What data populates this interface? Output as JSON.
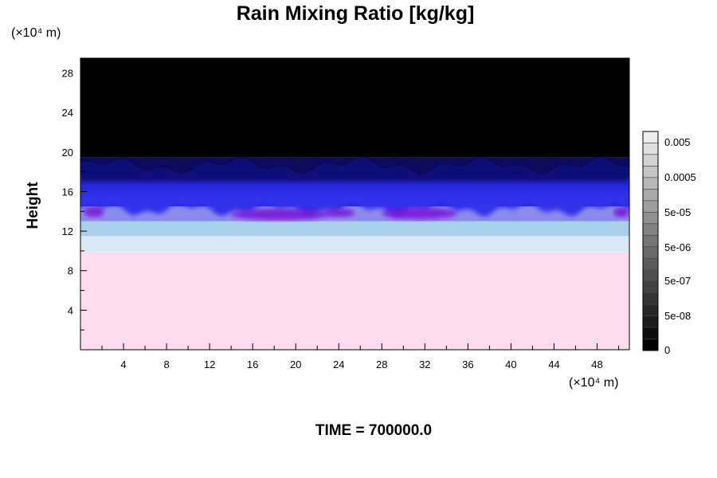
{
  "chart_data": {
    "type": "heatmap",
    "title": "Rain Mixing Ratio [kg/kg]",
    "ylabel": "Height",
    "x_unit": "(×10⁴ m)",
    "y_unit": "(×10⁴ m)",
    "x_ticks": [
      4,
      8,
      12,
      16,
      20,
      24,
      28,
      32,
      36,
      40,
      44,
      48
    ],
    "y_ticks": [
      4,
      8,
      12,
      16,
      20,
      24,
      28
    ],
    "xlim": [
      0,
      51
    ],
    "ylim": [
      0,
      29.5
    ],
    "colorbar": {
      "labels": [
        "0.005",
        "0.0005",
        "5e-05",
        "5e-06",
        "5e-07",
        "5e-08",
        "0"
      ]
    },
    "fields": [
      {
        "name": "surface",
        "y_range": [
          0,
          10
        ],
        "color": "#fcdcee"
      },
      {
        "name": "lower-transition",
        "y_range": [
          10,
          11.5
        ],
        "color": "#d8e8f4"
      },
      {
        "name": "light-blue",
        "y_range": [
          11.5,
          13
        ],
        "color": "#a8d0e8"
      },
      {
        "name": "periwinkle",
        "y_range": [
          13,
          14.5
        ],
        "color": "#8c8ce8"
      },
      {
        "name": "blue",
        "y_range": [
          14.5,
          17.5
        ],
        "color": "#2828e0"
      },
      {
        "name": "deep-blue",
        "y_range": [
          17.5,
          19.5
        ],
        "color": "#0c0c5c"
      },
      {
        "name": "top",
        "y_range": [
          19.5,
          29.5
        ],
        "color": "#000000"
      }
    ],
    "colors": {
      "purple_patch": "#7a18d8",
      "upper_blue": "#0a0a7a"
    }
  },
  "time_label": "TIME = 700000.0"
}
